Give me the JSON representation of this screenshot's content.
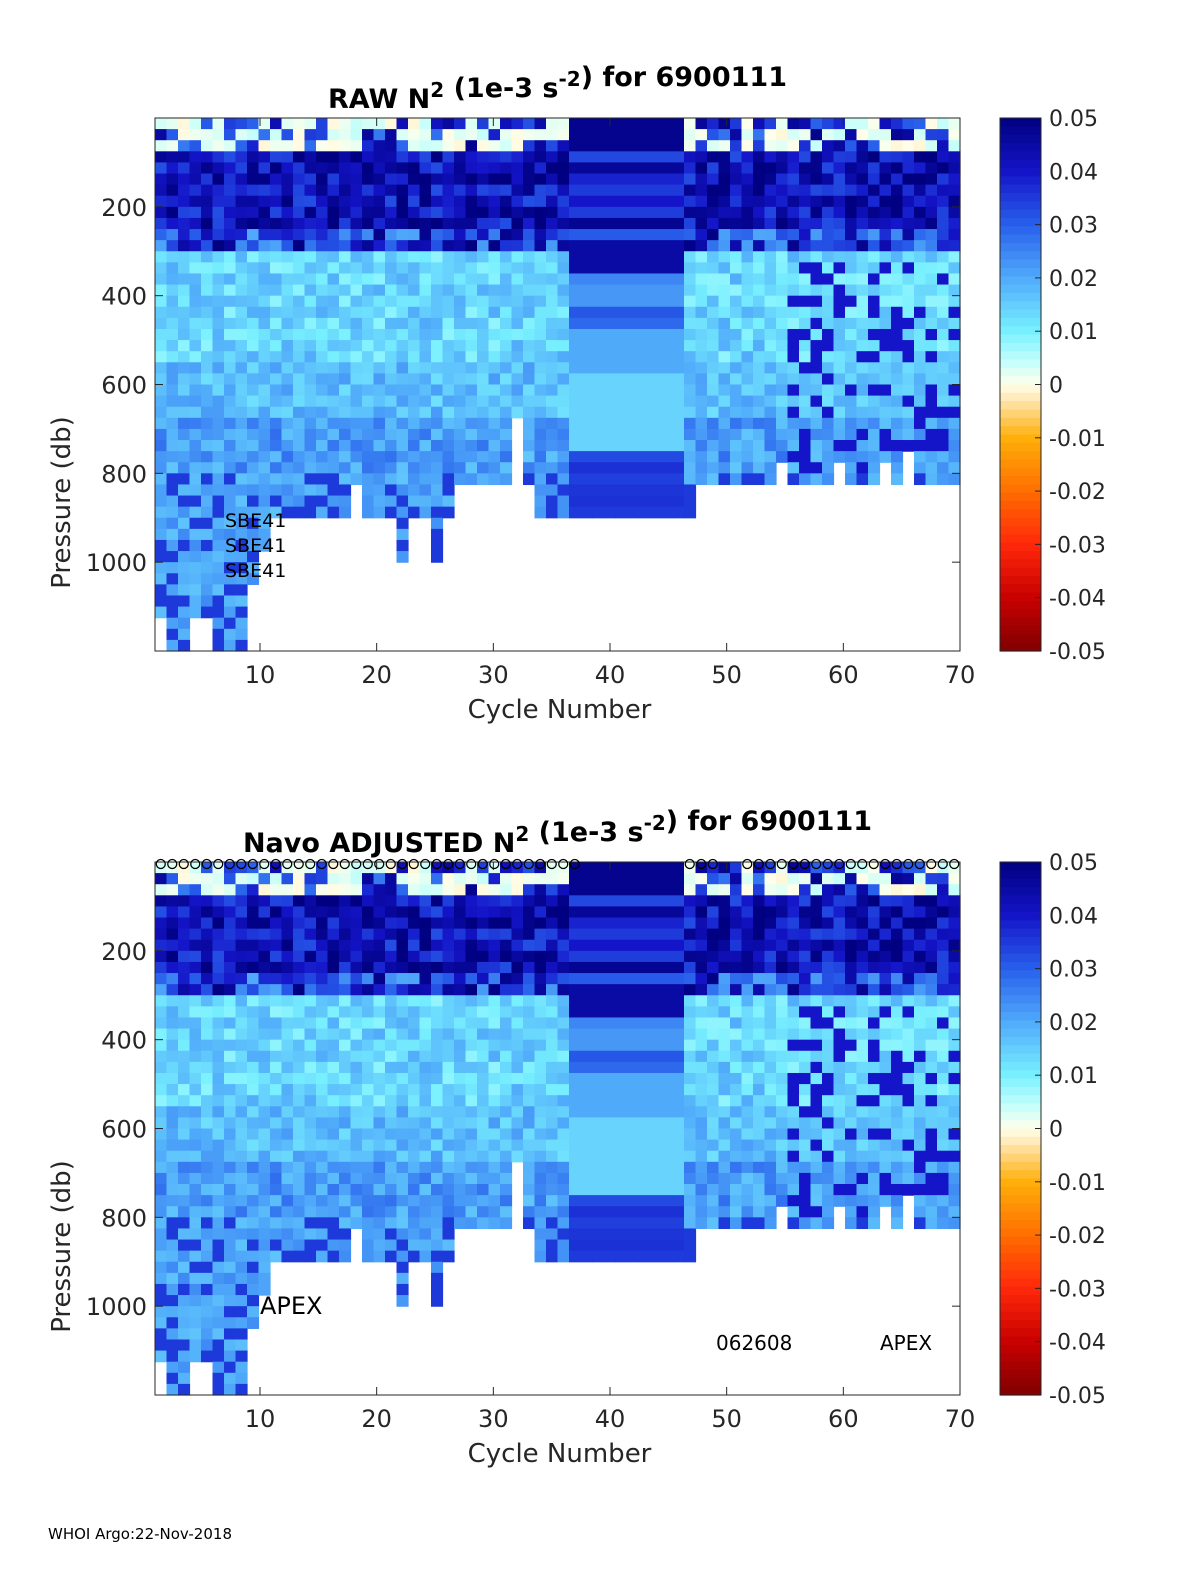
{
  "figure": {
    "footer": "WHOI Argo:22-Nov-2018"
  },
  "chart_data": [
    {
      "type": "heatmap",
      "title_main": "RAW N",
      "title_sup1": "2",
      "title_mid": " (1e-3 s",
      "title_sup2": "-2",
      "title_end": ") for 6900111",
      "xlabel": "Cycle Number",
      "ylabel": "Pressure (db)",
      "xlim": [
        1,
        70
      ],
      "ylim": [
        1200,
        0
      ],
      "xticks": [
        10,
        20,
        30,
        40,
        50,
        60,
        70
      ],
      "yticks": [
        200,
        400,
        600,
        800,
        1000
      ],
      "clim": [
        -0.05,
        0.05
      ],
      "colorbar_ticks": [
        "0.05",
        "0.04",
        "0.03",
        "0.02",
        "0.01",
        "0",
        "-0.01",
        "-0.02",
        "-0.03",
        "-0.04",
        "-0.05"
      ],
      "colorbar_values": [
        0.05,
        0.04,
        0.03,
        0.02,
        0.01,
        0,
        -0.01,
        -0.02,
        -0.03,
        -0.04,
        -0.05
      ],
      "annotations": [
        "SBE41",
        "SBE41",
        "SBE41"
      ],
      "has_markers": false
    },
    {
      "type": "heatmap",
      "title_main": "Navo  ADJUSTED N",
      "title_sup1": "2",
      "title_mid": " (1e-3 s",
      "title_sup2": "-2",
      "title_end": ") for 6900111",
      "xlabel": "Cycle Number",
      "ylabel": "Pressure (db)",
      "xlim": [
        1,
        70
      ],
      "ylim": [
        1200,
        0
      ],
      "xticks": [
        10,
        20,
        30,
        40,
        50,
        60,
        70
      ],
      "yticks": [
        200,
        400,
        600,
        800,
        1000
      ],
      "clim": [
        -0.05,
        0.05
      ],
      "colorbar_ticks": [
        "0.05",
        "0.04",
        "0.03",
        "0.02",
        "0.01",
        "0",
        "-0.01",
        "-0.02",
        "-0.03",
        "-0.04",
        "-0.05"
      ],
      "colorbar_values": [
        0.05,
        0.04,
        0.03,
        0.02,
        0.01,
        0,
        -0.01,
        -0.02,
        -0.03,
        -0.04,
        -0.05
      ],
      "annotations": [
        "APEX",
        "062608",
        "APEX"
      ],
      "has_markers": true
    }
  ]
}
